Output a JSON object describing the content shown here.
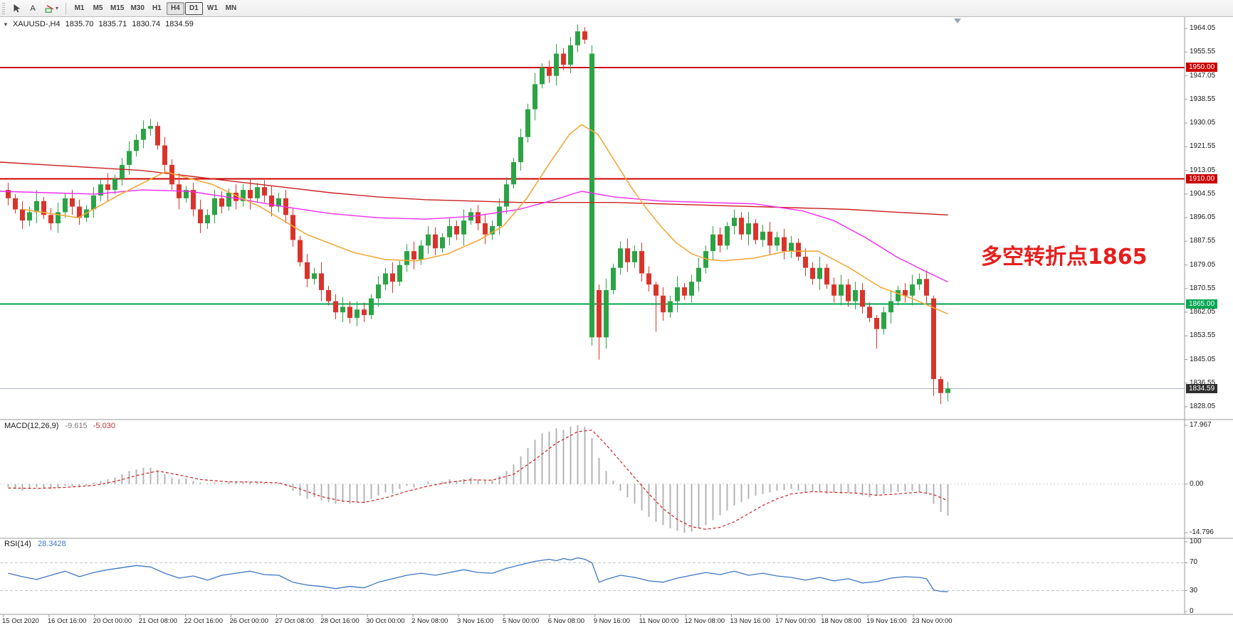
{
  "toolbar": {
    "text_tool_label": "A",
    "shapes_arrow": "▾",
    "timeframes": [
      {
        "label": "M1",
        "state": ""
      },
      {
        "label": "M5",
        "state": ""
      },
      {
        "label": "M15",
        "state": ""
      },
      {
        "label": "M30",
        "state": ""
      },
      {
        "label": "H1",
        "state": ""
      },
      {
        "label": "H4",
        "state": "active"
      },
      {
        "label": "D1",
        "state": "pressed"
      },
      {
        "label": "W1",
        "state": ""
      },
      {
        "label": "MN",
        "state": ""
      }
    ]
  },
  "chart": {
    "header": {
      "menu_arrow": "▼",
      "symbol_label": "XAUUSD-,H4",
      "open": "1835.70",
      "high": "1835.71",
      "low": "1830.74",
      "close": "1834.59"
    },
    "annotation": {
      "text": "多空转折点1865",
      "color": "#e61e1e"
    },
    "levels": [
      {
        "label": "1950.00",
        "value": 1950.0,
        "color": "#cc0000"
      },
      {
        "label": "1910.00",
        "value": 1910.0,
        "color": "#cc0000"
      },
      {
        "label": "1865.00",
        "value": 1865.0,
        "color": "#00a651"
      }
    ],
    "current_price": {
      "label": "1834.59",
      "value": 1834.59,
      "line_color": "#aab2ba",
      "tag_color": "#2f2f2f"
    },
    "price_axis_labels": [
      "1964.05",
      "1955.55",
      "1947.05",
      "1938.55",
      "1930.05",
      "1921.55",
      "1913.05",
      "1904.55",
      "1896.05",
      "1887.55",
      "1879.05",
      "1870.55",
      "1862.05",
      "1853.55",
      "1845.05",
      "1836.55",
      "1828.05"
    ]
  },
  "chart_data": {
    "type": "candlestick",
    "symbol": "XAUUSD",
    "timeframe": "H4",
    "colors": {
      "up": "#2ca345",
      "down": "#d9342b"
    },
    "candles": {
      "first_open": 1906,
      "wick_pattern": [
        2.5,
        1.5,
        3,
        2,
        4,
        1.5,
        2.5,
        3.5,
        2,
        3
      ],
      "closes": [
        1903,
        1899,
        1895,
        1898,
        1902,
        1897,
        1894,
        1898,
        1903,
        1900,
        1896,
        1899,
        1904,
        1908,
        1906,
        1910,
        1915,
        1920,
        1924,
        1928,
        1929,
        1922,
        1915,
        1908,
        1903,
        1906,
        1899,
        1894,
        1897,
        1903,
        1900,
        1905,
        1902,
        1906,
        1903,
        1907,
        1904,
        1900,
        1903,
        1897,
        1888,
        1880,
        1874,
        1876,
        1870,
        1866,
        1862,
        1864,
        1860,
        1863,
        1861,
        1867,
        1872,
        1876,
        1873,
        1879,
        1884,
        1881,
        1886,
        1890,
        1885,
        1889,
        1893,
        1890,
        1895,
        1898,
        1894,
        1890,
        1893,
        1900,
        1908,
        1916,
        1925,
        1935,
        1944,
        1950,
        1947,
        1955,
        1951,
        1958,
        1963,
        1960,
        1955,
        1853,
        1870,
        1878,
        1885,
        1880,
        1884,
        1876,
        1872,
        1868,
        1862,
        1866,
        1871,
        1868,
        1873,
        1878,
        1884,
        1890,
        1886,
        1893,
        1896,
        1890,
        1894,
        1888,
        1891,
        1886,
        1889,
        1884,
        1887,
        1882,
        1878,
        1874,
        1878,
        1872,
        1868,
        1872,
        1866,
        1870,
        1864,
        1860,
        1856,
        1862,
        1866,
        1870,
        1868,
        1872,
        1874,
        1868,
        1838,
        1833,
        1834.59
      ],
      "overrides": {
        "82": [
          1853,
          1958,
          1850,
          1955
        ],
        "83": [
          1870,
          1872,
          1845,
          1853
        ],
        "91": [
          1872,
          1873,
          1855,
          1868
        ],
        "122": [
          1860,
          1861,
          1849,
          1856
        ],
        "130": [
          1867,
          1868,
          1832,
          1838
        ],
        "131": [
          1838,
          1839,
          1829,
          1833
        ],
        "132": [
          1833,
          1837,
          1830,
          1834.59
        ]
      }
    },
    "moving_averages": [
      {
        "name": "ma-red",
        "color": "#cc2020",
        "width": 1.4,
        "points": [
          [
            0,
            1916
          ],
          [
            66,
            1915
          ],
          [
            133,
            1914
          ],
          [
            199,
            1913
          ],
          [
            265,
            1911
          ],
          [
            331,
            1909
          ],
          [
            398,
            1907
          ],
          [
            464,
            1905
          ],
          [
            530,
            1903.5
          ],
          [
            597,
            1902.5
          ],
          [
            663,
            1902
          ],
          [
            729,
            1901.5
          ],
          [
            795,
            1901.5
          ],
          [
            862,
            1901.5
          ],
          [
            928,
            1901
          ],
          [
            994,
            1900.5
          ],
          [
            1060,
            1900
          ],
          [
            1127,
            1899.5
          ],
          [
            1193,
            1899
          ],
          [
            1259,
            1898
          ],
          [
            1331,
            1897
          ]
        ]
      },
      {
        "name": "ma-magenta",
        "color": "#f02cf0",
        "width": 1.4,
        "points": [
          [
            0,
            1905.5
          ],
          [
            66,
            1905
          ],
          [
            133,
            1904.5
          ],
          [
            199,
            1906
          ],
          [
            265,
            1905.5
          ],
          [
            331,
            1903
          ],
          [
            398,
            1900
          ],
          [
            464,
            1897.5
          ],
          [
            530,
            1896
          ],
          [
            597,
            1895.5
          ],
          [
            663,
            1896.5
          ],
          [
            729,
            1899
          ],
          [
            773,
            1902
          ],
          [
            817,
            1905.5
          ],
          [
            862,
            1903.5
          ],
          [
            928,
            1902
          ],
          [
            994,
            1901.5
          ],
          [
            1060,
            1901
          ],
          [
            1127,
            1898.5
          ],
          [
            1171,
            1895
          ],
          [
            1215,
            1889
          ],
          [
            1259,
            1882
          ],
          [
            1298,
            1877
          ],
          [
            1331,
            1873
          ]
        ]
      },
      {
        "name": "ma-orange",
        "color": "#f2a93b",
        "width": 1.6,
        "points": [
          [
            33,
            1899
          ],
          [
            110,
            1896
          ],
          [
            166,
            1904
          ],
          [
            232,
            1912.5
          ],
          [
            298,
            1908
          ],
          [
            365,
            1900
          ],
          [
            431,
            1890
          ],
          [
            497,
            1883.5
          ],
          [
            541,
            1881
          ],
          [
            585,
            1880.5
          ],
          [
            629,
            1883
          ],
          [
            673,
            1888
          ],
          [
            707,
            1893
          ],
          [
            740,
            1903
          ],
          [
            773,
            1916
          ],
          [
            800,
            1926
          ],
          [
            817,
            1929.5
          ],
          [
            840,
            1926
          ],
          [
            862,
            1917
          ],
          [
            884,
            1908
          ],
          [
            906,
            1900
          ],
          [
            928,
            1893
          ],
          [
            950,
            1887
          ],
          [
            972,
            1883
          ],
          [
            994,
            1881
          ],
          [
            1016,
            1880.5
          ],
          [
            1060,
            1881.5
          ],
          [
            1105,
            1884
          ],
          [
            1149,
            1884
          ],
          [
            1193,
            1878
          ],
          [
            1237,
            1871
          ],
          [
            1281,
            1867
          ],
          [
            1331,
            1861.5
          ]
        ]
      }
    ],
    "macd": {
      "label": "MACD(12,26,9)",
      "value_main": "-9.615",
      "value_signal": "-5.030",
      "axis_labels": [
        "17.967",
        "0.00",
        "-14.796"
      ],
      "axis_values": [
        17.967,
        0,
        -14.796
      ],
      "histogram_color": "#b4b4b4",
      "signal_color": "#d02020",
      "histogram": [
        -1,
        -1.5,
        -2,
        -1.5,
        -1,
        -1.2,
        -1.5,
        -1,
        -0.5,
        -0.8,
        -1,
        -0.5,
        0.5,
        1,
        1.5,
        2,
        3,
        4,
        4.5,
        5,
        5,
        4,
        3,
        2,
        1.5,
        1.8,
        1,
        0.5,
        0.2,
        0.5,
        0.3,
        0.8,
        0.5,
        0.8,
        0.5,
        0.8,
        0.5,
        0.2,
        0.3,
        -0.5,
        -2,
        -3.5,
        -4.5,
        -4,
        -5,
        -5.5,
        -6,
        -5.5,
        -6,
        -5.5,
        -5.8,
        -4.5,
        -3.5,
        -2.5,
        -2.8,
        -1.5,
        -0.5,
        -1,
        0,
        0.8,
        0.2,
        0.8,
        1.5,
        1,
        1.5,
        2,
        1.5,
        1,
        1.2,
        2.5,
        4,
        6,
        8.5,
        11,
        13.5,
        15.5,
        16,
        17,
        16.5,
        17.5,
        17.967,
        17.5,
        14,
        8,
        4,
        1,
        -2,
        -4,
        -6,
        -8,
        -10,
        -11.5,
        -12.5,
        -13.5,
        -14.2,
        -14.796,
        -14.5,
        -13.5,
        -12.5,
        -11,
        -9.5,
        -8,
        -6.5,
        -5.5,
        -4.5,
        -3.5,
        -3,
        -2.5,
        -2,
        -1.8,
        -1.5,
        -2,
        -2.5,
        -2.2,
        -2.5,
        -3,
        -2.6,
        -3,
        -2.6,
        -3,
        -3.5,
        -4,
        -3.6,
        -3,
        -2.6,
        -2.4,
        -2.2,
        -2,
        -2.4,
        -3,
        -6,
        -8.5,
        -9.615
      ],
      "signal": [
        [
          0,
          -1.2
        ],
        [
          4,
          -1.3
        ],
        [
          8,
          -1.0
        ],
        [
          12,
          -0.4
        ],
        [
          15,
          0.8
        ],
        [
          18,
          2.6
        ],
        [
          21,
          4.0
        ],
        [
          24,
          2.8
        ],
        [
          27,
          1.4
        ],
        [
          31,
          0.7
        ],
        [
          35,
          0.6
        ],
        [
          38,
          0.4
        ],
        [
          41,
          -1.5
        ],
        [
          44,
          -3.8
        ],
        [
          47,
          -5.2
        ],
        [
          50,
          -5.6
        ],
        [
          53,
          -4.2
        ],
        [
          56,
          -2.2
        ],
        [
          59,
          -0.6
        ],
        [
          62,
          0.6
        ],
        [
          65,
          1.3
        ],
        [
          68,
          1.2
        ],
        [
          71,
          3.0
        ],
        [
          74,
          7.5
        ],
        [
          77,
          12.5
        ],
        [
          80,
          16.0
        ],
        [
          82,
          16.5
        ],
        [
          84,
          12.0
        ],
        [
          86,
          7.0
        ],
        [
          88,
          2.0
        ],
        [
          90,
          -3.0
        ],
        [
          92,
          -7.5
        ],
        [
          94,
          -10.8
        ],
        [
          96,
          -13.0
        ],
        [
          98,
          -13.8
        ],
        [
          100,
          -13.2
        ],
        [
          102,
          -11.5
        ],
        [
          104,
          -9.0
        ],
        [
          106,
          -6.5
        ],
        [
          108,
          -4.5
        ],
        [
          110,
          -3.0
        ],
        [
          113,
          -2.3
        ],
        [
          116,
          -2.5
        ],
        [
          119,
          -2.7
        ],
        [
          122,
          -3.4
        ],
        [
          125,
          -3.0
        ],
        [
          128,
          -2.4
        ],
        [
          130,
          -3.2
        ],
        [
          132,
          -5.03
        ]
      ]
    },
    "rsi": {
      "label": "RSI(14)",
      "value": "28.3428",
      "line_color": "#3e77c6",
      "axis_labels": [
        "100",
        "70",
        "30",
        "0"
      ],
      "axis_values": [
        100,
        70,
        30,
        0
      ],
      "levels": [
        70,
        30
      ],
      "points": [
        [
          0,
          55
        ],
        [
          2,
          50
        ],
        [
          4,
          46
        ],
        [
          6,
          52
        ],
        [
          8,
          58
        ],
        [
          10,
          50
        ],
        [
          12,
          56
        ],
        [
          14,
          60
        ],
        [
          16,
          63
        ],
        [
          18,
          66
        ],
        [
          20,
          64
        ],
        [
          22,
          55
        ],
        [
          24,
          48
        ],
        [
          26,
          51
        ],
        [
          28,
          45
        ],
        [
          30,
          52
        ],
        [
          32,
          55
        ],
        [
          34,
          58
        ],
        [
          36,
          53
        ],
        [
          38,
          52
        ],
        [
          40,
          42
        ],
        [
          42,
          38
        ],
        [
          44,
          36
        ],
        [
          46,
          33
        ],
        [
          48,
          36
        ],
        [
          50,
          34
        ],
        [
          52,
          42
        ],
        [
          54,
          47
        ],
        [
          56,
          52
        ],
        [
          58,
          55
        ],
        [
          60,
          52
        ],
        [
          62,
          56
        ],
        [
          64,
          60
        ],
        [
          66,
          56
        ],
        [
          68,
          55
        ],
        [
          70,
          62
        ],
        [
          72,
          67
        ],
        [
          74,
          72
        ],
        [
          76,
          75
        ],
        [
          77,
          73
        ],
        [
          78,
          76
        ],
        [
          79,
          74
        ],
        [
          80,
          77
        ],
        [
          81,
          75
        ],
        [
          82,
          70
        ],
        [
          83,
          42
        ],
        [
          84,
          46
        ],
        [
          86,
          52
        ],
        [
          88,
          49
        ],
        [
          90,
          44
        ],
        [
          92,
          42
        ],
        [
          94,
          48
        ],
        [
          96,
          52
        ],
        [
          98,
          56
        ],
        [
          100,
          53
        ],
        [
          102,
          58
        ],
        [
          104,
          52
        ],
        [
          106,
          55
        ],
        [
          108,
          51
        ],
        [
          110,
          49
        ],
        [
          112,
          45
        ],
        [
          114,
          49
        ],
        [
          116,
          44
        ],
        [
          118,
          47
        ],
        [
          120,
          41
        ],
        [
          122,
          43
        ],
        [
          124,
          48
        ],
        [
          126,
          50
        ],
        [
          128,
          49
        ],
        [
          129,
          47
        ],
        [
          130,
          31
        ],
        [
          131,
          29
        ],
        [
          132,
          28.34
        ]
      ]
    },
    "time_axis": [
      "15 Oct 2020",
      "16 Oct 16:00",
      "20 Oct 00:00",
      "21 Oct 08:00",
      "22 Oct 16:00",
      "26 Oct 00:00",
      "27 Oct 08:00",
      "28 Oct 16:00",
      "30 Oct 00:00",
      "2 Nov 08:00",
      "3 Nov 16:00",
      "5 Nov 00:00",
      "6 Nov 08:00",
      "9 Nov 16:00",
      "11 Nov 00:00",
      "12 Nov 08:00",
      "13 Nov 16:00",
      "17 Nov 00:00",
      "18 Nov 08:00",
      "19 Nov 16:00",
      "23 Nov 00:00"
    ]
  }
}
